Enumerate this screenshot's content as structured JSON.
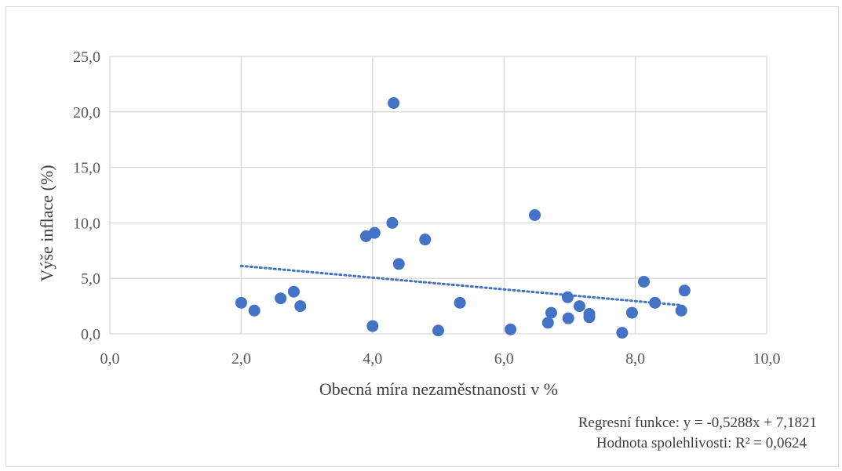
{
  "chart_data": {
    "type": "scatter",
    "xlabel": "Obecná míra nezaměstnanosti v %",
    "ylabel": "Výše inflace (%)",
    "xlim": [
      0,
      10
    ],
    "ylim": [
      0,
      25
    ],
    "x_ticks": [
      "0,0",
      "2,0",
      "4,0",
      "6,0",
      "8,0",
      "10,0"
    ],
    "y_ticks": [
      "0,0",
      "5,0",
      "10,0",
      "15,0",
      "20,0",
      "25,0"
    ],
    "grid": true,
    "series": [
      {
        "color": "#4472c4",
        "points": [
          {
            "x": 2.0,
            "y": 2.8
          },
          {
            "x": 2.2,
            "y": 2.1
          },
          {
            "x": 2.6,
            "y": 3.2
          },
          {
            "x": 2.8,
            "y": 3.8
          },
          {
            "x": 2.9,
            "y": 2.5
          },
          {
            "x": 3.9,
            "y": 8.8
          },
          {
            "x": 4.0,
            "y": 0.7
          },
          {
            "x": 4.03,
            "y": 9.1
          },
          {
            "x": 4.3,
            "y": 10.0
          },
          {
            "x": 4.32,
            "y": 20.8
          },
          {
            "x": 4.4,
            "y": 6.3
          },
          {
            "x": 4.8,
            "y": 8.5
          },
          {
            "x": 5.0,
            "y": 0.3
          },
          {
            "x": 5.33,
            "y": 2.8
          },
          {
            "x": 6.1,
            "y": 0.4
          },
          {
            "x": 6.47,
            "y": 10.7
          },
          {
            "x": 6.67,
            "y": 1.0
          },
          {
            "x": 6.72,
            "y": 1.9
          },
          {
            "x": 6.97,
            "y": 3.3
          },
          {
            "x": 6.98,
            "y": 1.4
          },
          {
            "x": 7.15,
            "y": 2.5
          },
          {
            "x": 7.3,
            "y": 1.5
          },
          {
            "x": 7.3,
            "y": 1.8
          },
          {
            "x": 7.8,
            "y": 0.1
          },
          {
            "x": 7.95,
            "y": 1.9
          },
          {
            "x": 8.13,
            "y": 4.7
          },
          {
            "x": 8.3,
            "y": 2.8
          },
          {
            "x": 8.7,
            "y": 2.1
          },
          {
            "x": 8.75,
            "y": 3.9
          }
        ]
      }
    ],
    "trendline": {
      "type": "linear",
      "color": "#4472c4",
      "slope": -0.5288,
      "intercept": 7.1821,
      "x_range": [
        2.0,
        8.7
      ]
    },
    "annotations": {
      "equation": "Regresní funkce: y = -0,5288x + 7,1821",
      "r_squared": "Hodnota spolehlivosti: R² = 0,0624"
    }
  }
}
